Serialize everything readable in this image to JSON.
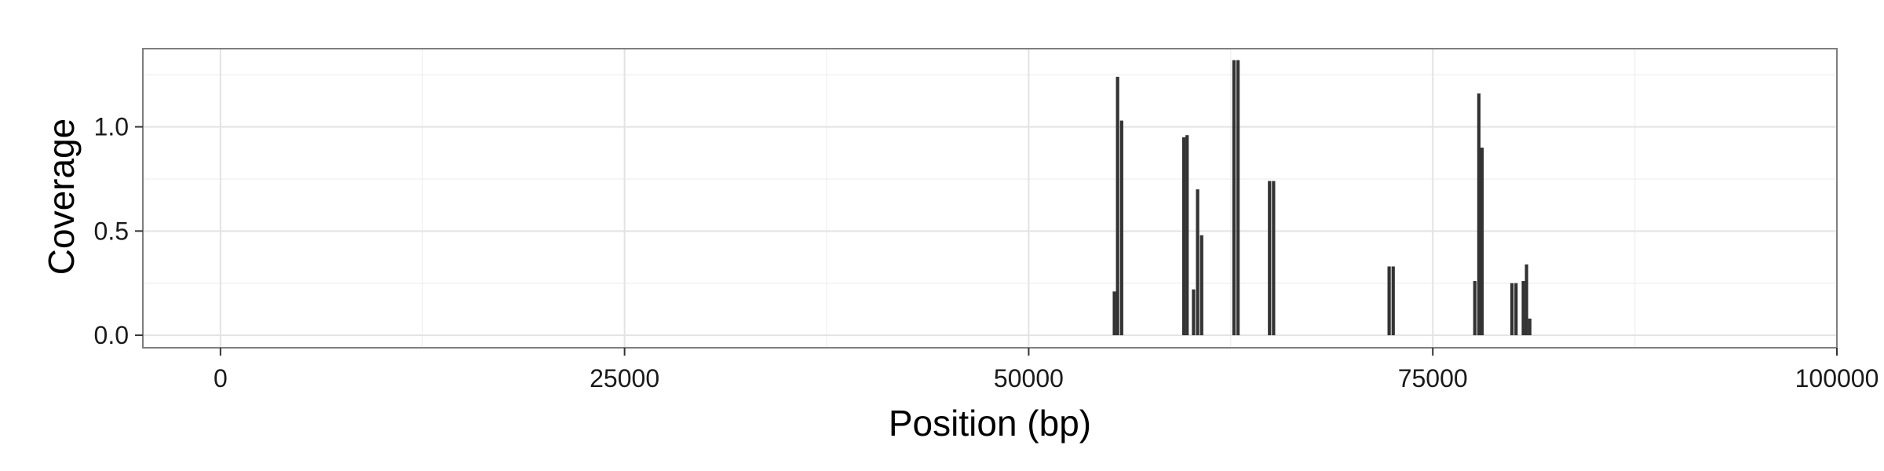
{
  "chart_data": {
    "type": "bar",
    "title": "",
    "xlabel": "Position (bp)",
    "ylabel": "Coverage",
    "xlim": [
      -4800,
      100000
    ],
    "ylim": [
      -0.06,
      1.375
    ],
    "x_ticks": [
      0,
      25000,
      50000,
      75000,
      100000
    ],
    "x_tick_labels": [
      "0",
      "25000",
      "50000",
      "75000",
      "100000"
    ],
    "y_ticks": [
      0.0,
      0.5,
      1.0
    ],
    "y_tick_labels": [
      "0.0",
      "0.5",
      "1.0"
    ],
    "grid": true,
    "bar_color": "#333333",
    "series": [
      {
        "x": [
          55300,
          55500,
          55750,
          59600,
          59800,
          60200,
          60450,
          60700,
          62700,
          62950,
          64900,
          65150,
          72300,
          72550,
          77600,
          77850,
          78050,
          79900,
          80150,
          80600,
          80800,
          81000
        ],
        "values": [
          0.21,
          1.24,
          1.03,
          0.95,
          0.96,
          0.22,
          0.7,
          0.48,
          1.32,
          1.32,
          0.74,
          0.74,
          0.33,
          0.33,
          0.26,
          1.16,
          0.9,
          0.25,
          0.25,
          0.26,
          0.34,
          0.08
        ]
      }
    ]
  }
}
